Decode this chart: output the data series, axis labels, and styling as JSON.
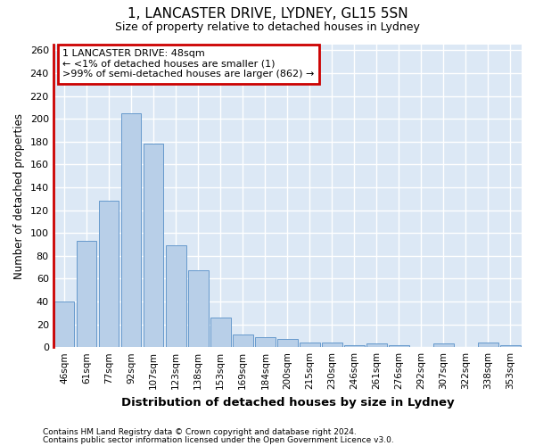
{
  "title1": "1, LANCASTER DRIVE, LYDNEY, GL15 5SN",
  "title2": "Size of property relative to detached houses in Lydney",
  "xlabel": "Distribution of detached houses by size in Lydney",
  "ylabel": "Number of detached properties",
  "categories": [
    "46sqm",
    "61sqm",
    "77sqm",
    "92sqm",
    "107sqm",
    "123sqm",
    "138sqm",
    "153sqm",
    "169sqm",
    "184sqm",
    "200sqm",
    "215sqm",
    "230sqm",
    "246sqm",
    "261sqm",
    "276sqm",
    "292sqm",
    "307sqm",
    "322sqm",
    "338sqm",
    "353sqm"
  ],
  "values": [
    40,
    93,
    128,
    205,
    178,
    89,
    67,
    26,
    11,
    9,
    7,
    4,
    4,
    2,
    3,
    2,
    0,
    3,
    0,
    4,
    2
  ],
  "bar_color": "#b8cfe8",
  "bar_edge_color": "#6699cc",
  "annotation_line1": "1 LANCASTER DRIVE: 48sqm",
  "annotation_line2": "← <1% of detached houses are smaller (1)",
  "annotation_line3": ">99% of semi-detached houses are larger (862) →",
  "annotation_box_facecolor": "#ffffff",
  "annotation_box_edge_color": "#cc0000",
  "red_line_color": "#cc0000",
  "ylim": [
    0,
    265
  ],
  "yticks": [
    0,
    20,
    40,
    60,
    80,
    100,
    120,
    140,
    160,
    180,
    200,
    220,
    240,
    260
  ],
  "bg_color": "#ffffff",
  "plot_bg_color": "#dce8f5",
  "grid_color": "#ffffff",
  "footer1": "Contains HM Land Registry data © Crown copyright and database right 2024.",
  "footer2": "Contains public sector information licensed under the Open Government Licence v3.0."
}
